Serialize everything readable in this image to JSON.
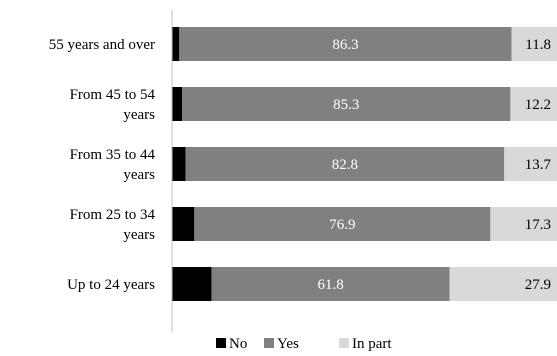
{
  "chart_data": {
    "type": "bar",
    "orientation": "horizontal",
    "stacked": true,
    "categories": [
      "55 years and over",
      "From 45 to 54 years",
      "From 35 to 44 years",
      "From 25 to 34 years",
      "Up to 24 years"
    ],
    "category_lines": [
      [
        "55 years and over"
      ],
      [
        "From 45 to 54",
        "years"
      ],
      [
        "From 35 to 44",
        "years"
      ],
      [
        "From 25 to 34",
        "years"
      ],
      [
        "Up to 24 years"
      ]
    ],
    "series": [
      {
        "name": "No",
        "color": "#000000",
        "label_color": "#ffffff",
        "values": [
          1.9,
          2.6,
          3.5,
          5.8,
          10.3
        ]
      },
      {
        "name": "Yes",
        "color": "#808080",
        "label_color": "#ffffff",
        "values": [
          86.3,
          85.3,
          82.8,
          76.9,
          61.8
        ]
      },
      {
        "name": "In part",
        "color": "#d9d9d9",
        "label_color": "#000000",
        "values": [
          11.8,
          12.2,
          13.7,
          17.3,
          27.9
        ]
      }
    ],
    "xlim": [
      0,
      100
    ],
    "grid": false,
    "legend": "bottom",
    "title": "",
    "xlabel": "",
    "ylabel": ""
  }
}
